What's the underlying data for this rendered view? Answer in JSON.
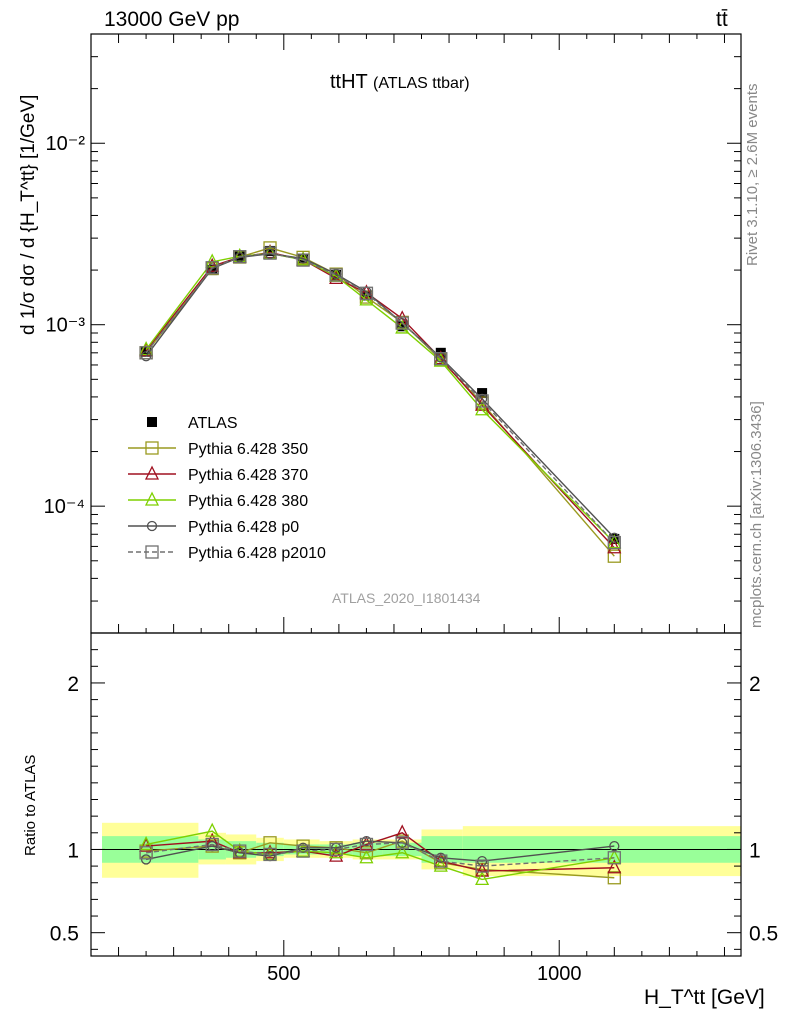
{
  "header": {
    "energy_label": "13000 GeV pp",
    "process_label": "tt̄"
  },
  "side_labels": {
    "rivet": "Rivet 3.1.10, ≥ 2.6M events",
    "mcplots": "mcplots.cern.ch [arXiv:1306.3436]"
  },
  "analysis_id": "ATLAS_2020_I1801434",
  "chart_data": [
    {
      "type": "line",
      "title": "tt̅H̅T̅ (ATLAS ttbar)",
      "title_main": "ttHT",
      "title_sub": "(ATLAS ttbar)",
      "ylabel": "d 1/σ dσ / d {H_T^tt} [1/GeV]",
      "yscale": "log",
      "ylim": [
        2e-05,
        0.04
      ],
      "xlim": [
        150,
        1330
      ],
      "x": [
        250,
        370,
        420,
        475,
        535,
        595,
        650,
        715,
        785,
        860,
        1100
      ],
      "series": [
        {
          "name": "ATLAS",
          "color": "#000000",
          "marker": "filled-square",
          "values": [
            0.00071,
            0.002,
            0.0024,
            0.00255,
            0.0023,
            0.00188,
            0.00145,
            0.00098,
            0.0007,
            0.00042,
            6.6e-05
          ]
        },
        {
          "name": "Pythia 6.428 350",
          "color": "#9a9a20",
          "marker": "open-square",
          "values": [
            0.0007,
            0.00204,
            0.00236,
            0.00265,
            0.00235,
            0.0019,
            0.00142,
            0.00103,
            0.00064,
            0.00037,
            5.3e-05
          ]
        },
        {
          "name": "Pythia 6.428 370",
          "color": "#a01020",
          "marker": "open-triangle",
          "values": [
            0.00072,
            0.0021,
            0.00236,
            0.0025,
            0.00228,
            0.0018,
            0.0015,
            0.00108,
            0.00065,
            0.00036,
            5.9e-05
          ]
        },
        {
          "name": "Pythia 6.428 380",
          "color": "#7ed000",
          "marker": "open-triangle",
          "values": [
            0.00073,
            0.00222,
            0.00238,
            0.00247,
            0.00228,
            0.00185,
            0.00137,
            0.00096,
            0.00063,
            0.00034,
            6.3e-05
          ]
        },
        {
          "name": "Pythia 6.428 p0",
          "color": "#505050",
          "marker": "open-circle",
          "values": [
            0.00067,
            0.00204,
            0.00235,
            0.00246,
            0.00232,
            0.0019,
            0.00152,
            0.00102,
            0.00066,
            0.00039,
            6.7e-05
          ]
        },
        {
          "name": "Pythia 6.428 p2010",
          "color": "#707070",
          "marker": "open-square-dashed",
          "values": [
            0.0007,
            0.00206,
            0.00237,
            0.00248,
            0.00227,
            0.00188,
            0.00149,
            0.00102,
            0.00065,
            0.00038,
            6.3e-05
          ]
        }
      ]
    },
    {
      "type": "line",
      "ylabel": "Ratio to ATLAS",
      "xlabel": "H_T^tt [GeV]",
      "ylim": [
        0.36,
        2.3
      ],
      "xlim": [
        150,
        1330
      ],
      "y_ticks": [
        0.5,
        1,
        2
      ],
      "x_ticks": [
        500,
        1000
      ],
      "reference": 1,
      "uncertainty_bands": [
        {
          "x_range": [
            170,
            345
          ],
          "inner": [
            0.92,
            1.08
          ],
          "outer": [
            0.83,
            1.16
          ]
        },
        {
          "x_range": [
            345,
            395
          ],
          "inner": [
            0.94,
            1.06
          ],
          "outer": [
            0.91,
            1.1
          ]
        },
        {
          "x_range": [
            395,
            450
          ],
          "inner": [
            0.95,
            1.05
          ],
          "outer": [
            0.91,
            1.09
          ]
        },
        {
          "x_range": [
            450,
            500
          ],
          "inner": [
            0.96,
            1.04
          ],
          "outer": [
            0.93,
            1.07
          ]
        },
        {
          "x_range": [
            500,
            565
          ],
          "inner": [
            0.97,
            1.03
          ],
          "outer": [
            0.95,
            1.06
          ]
        },
        {
          "x_range": [
            565,
            625
          ],
          "inner": [
            0.97,
            1.03
          ],
          "outer": [
            0.95,
            1.05
          ]
        },
        {
          "x_range": [
            625,
            680
          ],
          "inner": [
            0.96,
            1.04
          ],
          "outer": [
            0.94,
            1.06
          ]
        },
        {
          "x_range": [
            680,
            750
          ],
          "inner": [
            0.96,
            1.04
          ],
          "outer": [
            0.94,
            1.06
          ]
        },
        {
          "x_range": [
            750,
            825
          ],
          "inner": [
            0.92,
            1.08
          ],
          "outer": [
            0.88,
            1.12
          ]
        },
        {
          "x_range": [
            825,
            1330
          ],
          "inner": [
            0.92,
            1.08
          ],
          "outer": [
            0.84,
            1.14
          ]
        }
      ],
      "x": [
        250,
        370,
        420,
        475,
        535,
        595,
        650,
        715,
        785,
        860,
        1100
      ],
      "series": [
        {
          "name": "Pythia 6.428 350",
          "values": [
            0.99,
            1.02,
            0.98,
            1.04,
            1.02,
            1.01,
            0.98,
            1.05,
            0.92,
            0.88,
            0.83
          ]
        },
        {
          "name": "Pythia 6.428 370",
          "values": [
            1.02,
            1.05,
            0.98,
            0.98,
            0.99,
            0.96,
            1.03,
            1.1,
            0.93,
            0.87,
            0.89
          ]
        },
        {
          "name": "Pythia 6.428 380",
          "values": [
            1.03,
            1.11,
            0.99,
            0.97,
            0.99,
            0.98,
            0.95,
            0.98,
            0.9,
            0.82,
            0.95
          ]
        },
        {
          "name": "Pythia 6.428 p0",
          "values": [
            0.94,
            1.02,
            0.98,
            0.96,
            1.01,
            1.01,
            1.05,
            1.04,
            0.95,
            0.93,
            1.02
          ]
        },
        {
          "name": "Pythia 6.428 p2010",
          "values": [
            0.98,
            1.03,
            0.99,
            0.97,
            0.99,
            1.0,
            1.03,
            1.04,
            0.93,
            0.9,
            0.95
          ]
        }
      ]
    }
  ]
}
